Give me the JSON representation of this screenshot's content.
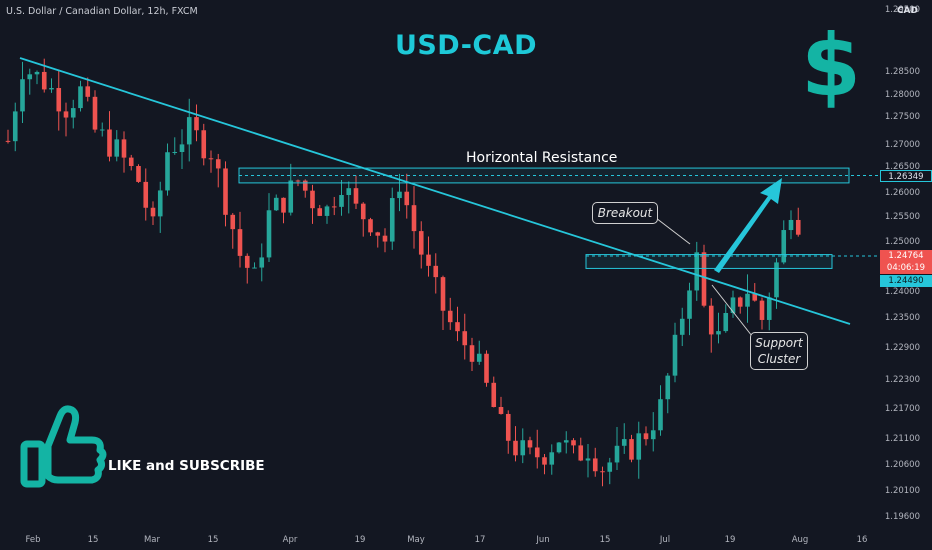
{
  "header": {
    "instrument": "U.S. Dollar / Canadian Dollar, 12h, FXCM",
    "currency": "CAD"
  },
  "overlay": {
    "title": "USD-CAD",
    "dollar_symbol": "$",
    "like_text": "LIKE and SUBSCRIBE",
    "horizontal_resistance_label": "Horizontal Resistance",
    "breakout_label": "Breakout",
    "support_label_line1": "Support",
    "support_label_line2": "Cluster"
  },
  "price_labels": {
    "resistance": "1.26349",
    "current": "1.24764",
    "countdown": "04:06:19",
    "support": "1.24490"
  },
  "colors": {
    "background": "#131722",
    "up_candle": "#26a69a",
    "down_candle": "#ef5350",
    "trendline": "#26c6da",
    "accent": "#1ec9d8",
    "dollar": "#14b4a4",
    "like_icon": "#14b4a4"
  },
  "chart_data": {
    "type": "candlestick",
    "title": "U.S. Dollar / Canadian Dollar, 12h, FXCM",
    "ylabel": "CAD",
    "ylim": [
      1.1925,
      1.2985
    ],
    "y_ticks": [
      "1.29500",
      "1.28500",
      "1.28000",
      "1.27500",
      "1.27000",
      "1.26500",
      "1.26000",
      "1.25500",
      "1.25000",
      "1.24000",
      "1.23500",
      "1.22900",
      "1.22300",
      "1.21700",
      "1.21100",
      "1.20600",
      "1.20100",
      "1.19600"
    ],
    "x_ticks": [
      "Feb",
      "15",
      "Mar",
      "15",
      "Apr",
      "19",
      "May",
      "17",
      "Jun",
      "15",
      "Jul",
      "19",
      "Aug",
      "16"
    ],
    "horizontal_resistance": [
      1.2615,
      1.2645
    ],
    "support_cluster": [
      1.2442,
      1.247
    ],
    "resistance_level": 1.26349,
    "support_level": 1.2449,
    "last_price": 1.24764,
    "price_path": [
      [
        0,
        1.27
      ],
      [
        2,
        1.285
      ],
      [
        5,
        1.282
      ],
      [
        8,
        1.277
      ],
      [
        10,
        1.28
      ],
      [
        12,
        1.272
      ],
      [
        15,
        1.268
      ],
      [
        18,
        1.262
      ],
      [
        20,
        1.252
      ],
      [
        22,
        1.268
      ],
      [
        25,
        1.272
      ],
      [
        28,
        1.268
      ],
      [
        30,
        1.258
      ],
      [
        32,
        1.247
      ],
      [
        34,
        1.242
      ],
      [
        36,
        1.255
      ],
      [
        38,
        1.258
      ],
      [
        40,
        1.262
      ],
      [
        42,
        1.258
      ],
      [
        44,
        1.256
      ],
      [
        46,
        1.262
      ],
      [
        48,
        1.256
      ],
      [
        50,
        1.254
      ],
      [
        52,
        1.25
      ],
      [
        54,
        1.262
      ],
      [
        56,
        1.252
      ],
      [
        58,
        1.243
      ],
      [
        60,
        1.236
      ],
      [
        62,
        1.23
      ],
      [
        64,
        1.228
      ],
      [
        66,
        1.22
      ],
      [
        68,
        1.212
      ],
      [
        70,
        1.208
      ],
      [
        72,
        1.206
      ],
      [
        74,
        1.207
      ],
      [
        76,
        1.21
      ],
      [
        78,
        1.206
      ],
      [
        80,
        1.208
      ],
      [
        82,
        1.204
      ],
      [
        84,
        1.206
      ],
      [
        86,
        1.208
      ],
      [
        88,
        1.211
      ],
      [
        90,
        1.216
      ],
      [
        92,
        1.228
      ],
      [
        94,
        1.242
      ],
      [
        95,
        1.246
      ],
      [
        96,
        1.236
      ],
      [
        98,
        1.23
      ],
      [
        100,
        1.236
      ],
      [
        102,
        1.24
      ],
      [
        104,
        1.234
      ],
      [
        106,
        1.245
      ],
      [
        108,
        1.257
      ],
      [
        109,
        1.254
      ],
      [
        110,
        1.248
      ]
    ]
  }
}
